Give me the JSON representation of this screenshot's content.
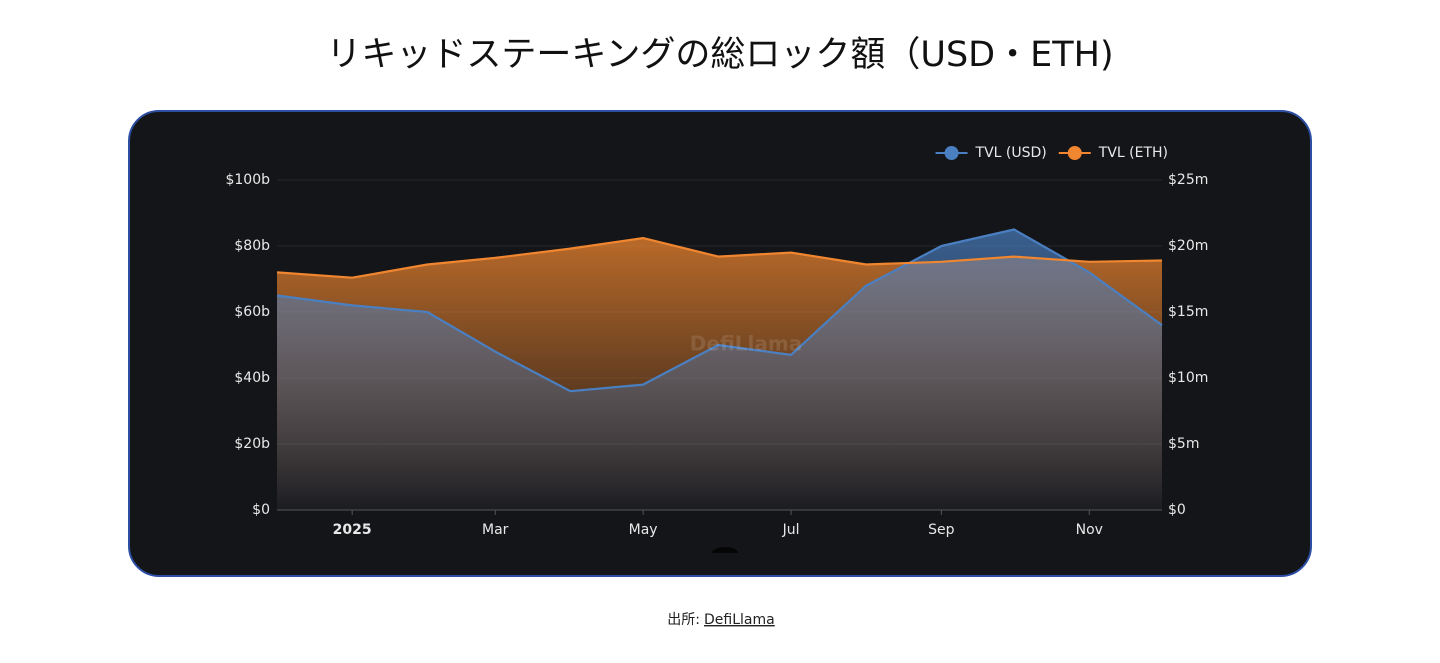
{
  "chart_data": {
    "type": "line",
    "title": "リキッドステーキングの総ロック額（USD・ETH)",
    "watermark": "DefiLlama",
    "source": {
      "label": "出所:",
      "link": "DefiLlama"
    },
    "x": [
      "2024-12",
      "2025-01",
      "2025-02",
      "2025-03",
      "2025-04",
      "2025-05",
      "2025-06",
      "2025-07",
      "2025-08",
      "2025-09",
      "2025-10",
      "2025-11",
      "2025-12"
    ],
    "xlim": [
      "2024-12",
      "2025-12"
    ],
    "xticks": [
      {
        "value": "2025-01",
        "label": "2025"
      },
      {
        "value": "2025-03",
        "label": "Mar"
      },
      {
        "value": "2025-05",
        "label": "May"
      },
      {
        "value": "2025-07",
        "label": "Jul"
      },
      {
        "value": "2025-09",
        "label": "Sep"
      },
      {
        "value": "2025-11",
        "label": "Nov"
      }
    ],
    "series": [
      {
        "name": "TVL (USD)",
        "color": "#4a7fc1",
        "values": [
          65,
          62,
          60,
          48,
          36,
          38,
          50,
          47,
          68,
          80,
          85,
          72,
          56
        ]
      },
      {
        "name": "TVL (ETH)",
        "color": "#f0862f",
        "axis": "y2",
        "values": [
          18.0,
          17.6,
          18.6,
          19.1,
          19.8,
          20.6,
          19.2,
          19.5,
          18.6,
          18.8,
          19.2,
          18.8,
          18.9
        ]
      }
    ],
    "ylim": [
      0,
      100
    ],
    "yticks": [
      {
        "value": 0,
        "label": "$0"
      },
      {
        "value": 20,
        "label": "$20b"
      },
      {
        "value": 40,
        "label": "$40b"
      },
      {
        "value": 60,
        "label": "$60b"
      },
      {
        "value": 80,
        "label": "$80b"
      },
      {
        "value": 100,
        "label": "$100b"
      }
    ],
    "y2lim": [
      0,
      25
    ],
    "y2ticks": [
      {
        "value": 0,
        "label": "$0"
      },
      {
        "value": 5,
        "label": "$5m"
      },
      {
        "value": 10,
        "label": "$10m"
      },
      {
        "value": 15,
        "label": "$15m"
      },
      {
        "value": 20,
        "label": "$20m"
      },
      {
        "value": 25,
        "label": "$25m"
      }
    ],
    "grid": true,
    "legend": "top-right"
  }
}
